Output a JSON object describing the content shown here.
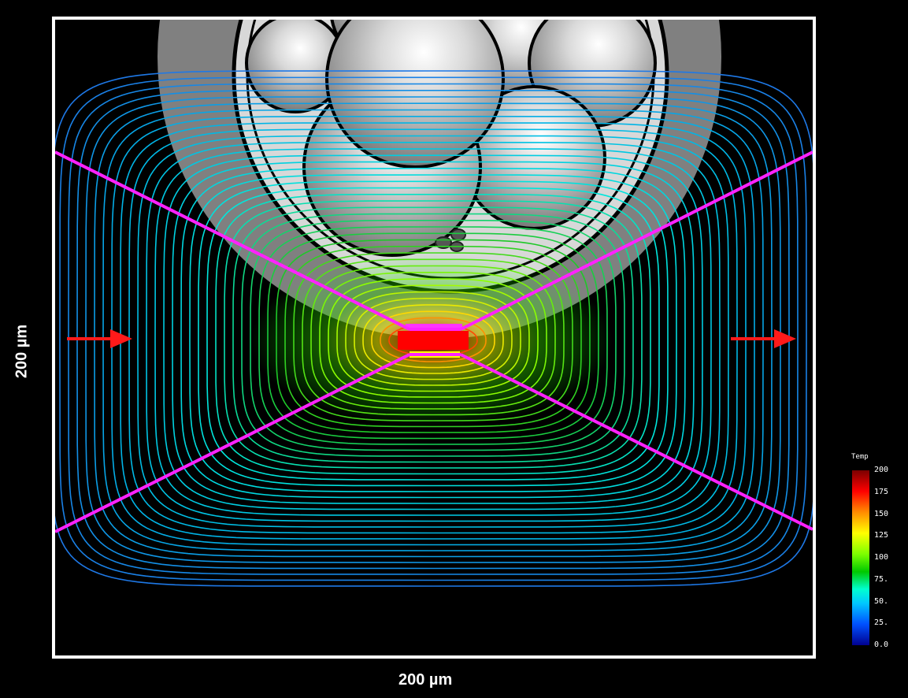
{
  "axes": {
    "x_label": "200 µm",
    "y_label": "200 µm"
  },
  "legend": {
    "title": "Temp",
    "ticks": [
      "200",
      "175",
      "150",
      "125",
      "100",
      "75.",
      "50.",
      "25.",
      "0.0"
    ]
  },
  "colors": {
    "frame": "#ffffff",
    "beam_lines": "#ff22ff",
    "arrows": "#ff1a1a",
    "hotspot": "#ff0000",
    "background": "#000000"
  },
  "icons": [
    "arrow-right-icon"
  ]
}
